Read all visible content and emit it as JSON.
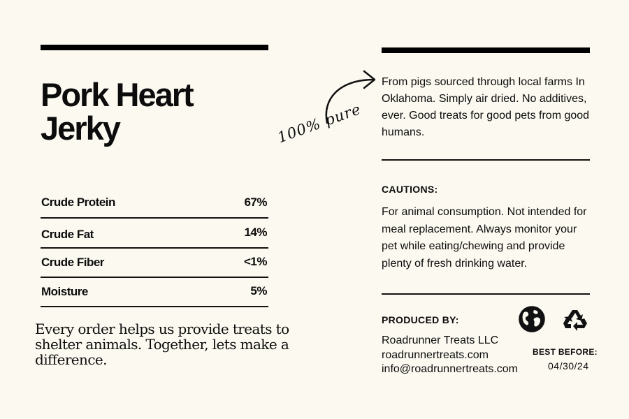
{
  "product": {
    "title_line1": "Pork Heart",
    "title_line2": "Jerky"
  },
  "nutrition": [
    {
      "label": "Crude Protein",
      "value": "67%"
    },
    {
      "label": "Crude Fat",
      "value": "14%"
    },
    {
      "label": "Crude Fiber",
      "value": "<1%"
    },
    {
      "label": "Moisture",
      "value": "5%"
    }
  ],
  "slogan": "Every order helps us provide treats to shelter animals. Together, lets make a difference.",
  "handwritten_note": "100% pure",
  "intro": "From pigs sourced through local farms In Oklahoma. Simply air dried. No additives, ever. Good treats for good pets from good humans.",
  "cautions": {
    "heading": "CAUTIONS:",
    "text": "For animal consumption. Not intended for meal replacement. Always monitor your pet while eating/chewing and provide plenty of fresh drinking water."
  },
  "producer": {
    "heading": "PRODUCED BY:",
    "name": "Roadrunner Treats LLC",
    "website": "roadrunnertreats.com",
    "email": "info@roadrunnertreats.com"
  },
  "best_before": {
    "label": "BEST BEFORE:",
    "date": "04/30/24"
  },
  "icons": {
    "globe": "globe-icon",
    "recycle": "recycle-icon",
    "arrow": "curved-arrow-icon"
  }
}
